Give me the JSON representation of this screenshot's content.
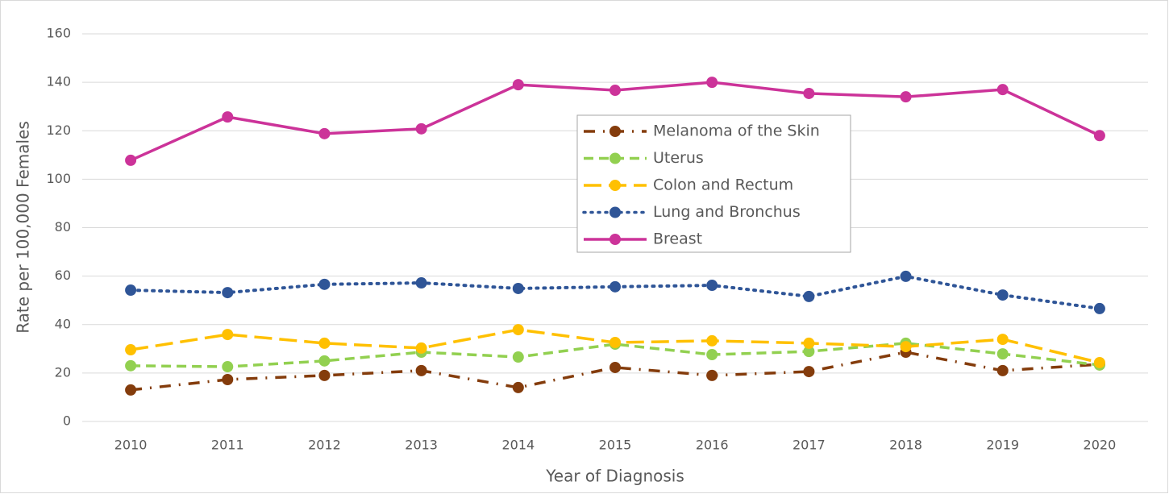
{
  "chart_data": {
    "type": "line",
    "x_label": "Year of Diagnosis",
    "y_label": "Rate per 100,000 Females",
    "categories": [
      "2010",
      "2011",
      "2012",
      "2013",
      "2014",
      "2015",
      "2016",
      "2017",
      "2018",
      "2019",
      "2020"
    ],
    "series": [
      {
        "name": "Melanoma of the Skin",
        "color": "#843c0c",
        "line_style": "dash-dot",
        "values": [
          13,
          17.3,
          19,
          21,
          14,
          22.3,
          19,
          20.6,
          28.6,
          21,
          23.6
        ]
      },
      {
        "name": "Uterus",
        "color": "#92d050",
        "line_style": "dashed",
        "values": [
          23,
          22.6,
          25,
          28.6,
          26.6,
          31.9,
          27.6,
          28.9,
          32.3,
          27.9,
          23.3
        ]
      },
      {
        "name": "Colon and Rectum",
        "color": "#ffc000",
        "line_style": "long-dashed",
        "values": [
          29.6,
          35.9,
          32.3,
          30.3,
          37.9,
          32.6,
          33.3,
          32.3,
          30.9,
          33.9,
          24.3
        ]
      },
      {
        "name": "Lung and Bronchus",
        "color": "#2f5597",
        "line_style": "dotted",
        "values": [
          54.2,
          53.2,
          56.6,
          57.2,
          54.9,
          55.6,
          56.2,
          51.6,
          59.9,
          52.2,
          46.6
        ]
      },
      {
        "name": "Breast",
        "color": "#cc3399",
        "line_style": "solid",
        "values": [
          107.8,
          125.7,
          118.8,
          120.8,
          139,
          136.7,
          140,
          135.4,
          134,
          137,
          118
        ]
      }
    ],
    "ylim": [
      0,
      160
    ],
    "yticks": [
      0,
      20,
      40,
      60,
      80,
      100,
      120,
      140,
      160
    ],
    "grid": true,
    "legend": "center"
  }
}
